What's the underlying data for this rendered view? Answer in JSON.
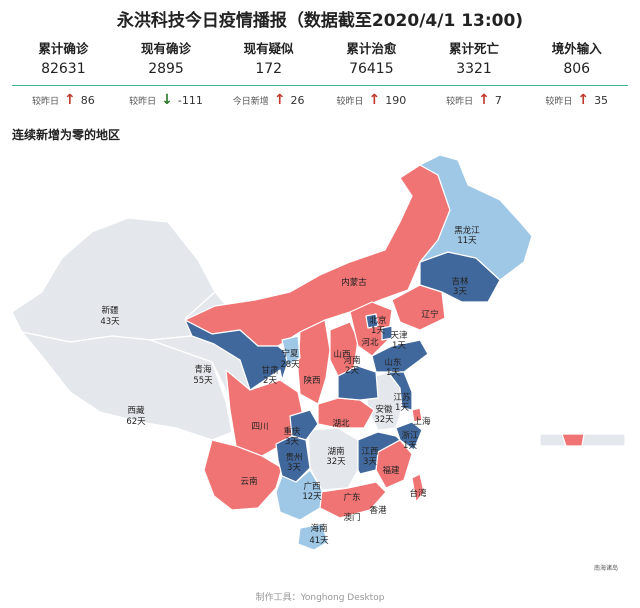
{
  "title": "永洪科技今日疫情播报（数据截至2020/4/1 13:00)",
  "stats": [
    {
      "label": "累计确诊",
      "value": "82631",
      "change_label": "较昨日",
      "direction": "up",
      "change": "86"
    },
    {
      "label": "现有确诊",
      "value": "2895",
      "change_label": "较昨日",
      "direction": "down",
      "change": "-111"
    },
    {
      "label": "现有疑似",
      "value": "172",
      "change_label": "今日新增",
      "direction": "up",
      "change": "26"
    },
    {
      "label": "累计治愈",
      "value": "76415",
      "change_label": "较昨日",
      "direction": "up",
      "change": "190"
    },
    {
      "label": "累计死亡",
      "value": "3321",
      "change_label": "较昨日",
      "direction": "up",
      "change": "7"
    },
    {
      "label": "境外输入",
      "value": "806",
      "change_label": "较昨日",
      "direction": "up",
      "change": "35"
    }
  ],
  "section_title": "连续新增为零的地区",
  "colors": {
    "red": "#f07474",
    "dark_blue": "#41689c",
    "light_blue": "#9fc7e6",
    "gray": "#e4e8ec",
    "accent_line": "#48b39b"
  },
  "regions": {
    "heilongjiang": {
      "name": "黑龙江",
      "days": "11天"
    },
    "jilin": {
      "name": "吉林",
      "days": "3天"
    },
    "liaoning": {
      "name": "辽宁"
    },
    "neimenggu": {
      "name": "内蒙古"
    },
    "beijing": {
      "name": "北京",
      "days": "1天"
    },
    "tianjin": {
      "name": "天津",
      "days": "1天"
    },
    "hebei": {
      "name": "河北"
    },
    "shanxi": {
      "name": "山西"
    },
    "shandong": {
      "name": "山东",
      "days": "1天"
    },
    "henan": {
      "name": "河南",
      "days": "2天"
    },
    "jiangsu": {
      "name": "江苏",
      "days": "1天"
    },
    "anhui": {
      "name": "安徽",
      "days": "32天"
    },
    "shanghai": {
      "name": "上海"
    },
    "zhejiang": {
      "name": "浙江",
      "days": "1天"
    },
    "hubei": {
      "name": "湖北"
    },
    "hunan": {
      "name": "湖南",
      "days": "32天"
    },
    "jiangxi": {
      "name": "江西",
      "days": "3天"
    },
    "fujian": {
      "name": "福建"
    },
    "taiwan": {
      "name": "台湾"
    },
    "guangdong": {
      "name": "广东"
    },
    "hongkong": {
      "name": "香港"
    },
    "macau": {
      "name": "澳门"
    },
    "guangxi": {
      "name": "广西",
      "days": "12天"
    },
    "hainan": {
      "name": "海南",
      "days": "41天"
    },
    "guizhou": {
      "name": "贵州",
      "days": "3天"
    },
    "chongqing": {
      "name": "重庆",
      "days": "3天"
    },
    "sichuan": {
      "name": "四川"
    },
    "yunnan": {
      "name": "云南"
    },
    "shaanxi": {
      "name": "陕西"
    },
    "gansu": {
      "name": "甘肃",
      "days": "2天"
    },
    "ningxia": {
      "name": "宁夏",
      "days": "28天"
    },
    "qinghai": {
      "name": "青海",
      "days": "55天"
    },
    "xinjiang": {
      "name": "新疆",
      "days": "43天"
    },
    "xizang": {
      "name": "西藏",
      "days": "62天"
    }
  },
  "inset_label": "南海诸岛",
  "footer": "制作工具：Yonghong Desktop"
}
